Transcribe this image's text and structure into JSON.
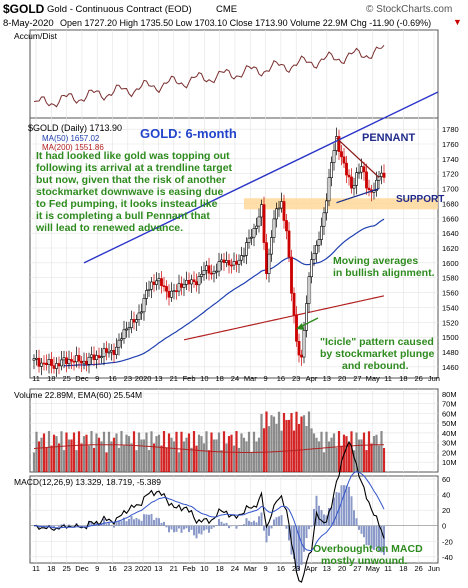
{
  "header": {
    "symbol": "$GOLD",
    "name": "Gold - Continuous Contract (EOD)",
    "exchange": "CME",
    "watermark": "© StockCharts.com",
    "date": "8-May-2020",
    "stats": "Open 1727.20  High 1735.50  Low 1703.10  Close 1713.90  Volume 22.9M  Chg -11.90 (-0.69%)",
    "chg_marker": "▼"
  },
  "panels": {
    "accum_label": "Accum/Dist",
    "price_label": "$GOLD (Daily) 1713.90",
    "ma50_label": "MA(50) 1657.02",
    "ma200_label": "MA(200) 1551.86",
    "volume_label": "Volume 22.89M, EMA(60) 25.54M",
    "macd_label": "MACD(12,26,9) 13.329, 18.719, -5.389"
  },
  "annotations": {
    "title": "GOLD: 6-month",
    "commentary": [
      "It had looked like gold was topping out",
      "following its arrival at a trendline target",
      "but now, given that the risk of another",
      "stockmarket downwave is easing due",
      "to Fed pumping, it looks instead like",
      "it is completing a bull Pennant that",
      "will lead to renewed advance."
    ],
    "pennant": "PENNANT",
    "support": "SUPPORT",
    "moving_averages": [
      "Moving averages",
      "in bullish alignment."
    ],
    "icicle": [
      "\"Icicle\" pattern caused",
      "by stockmarket plunge",
      "and rebound."
    ],
    "macd_note": [
      "Overbought on MACD",
      "mostly unwound."
    ]
  },
  "colors": {
    "up": "#000000",
    "down": "#cc0000",
    "ma50": "#1f3fb0",
    "ma200": "#b22222",
    "trendline": "#2a34c8",
    "annotation_green": "#2e8b1e",
    "title_blue": "#2244cc",
    "support_band": "#ffd89a",
    "macd_hist": "#8a99c8",
    "accum_line": "#7a2d2d"
  },
  "chart_data": {
    "type": "candlestick",
    "x_tick_labels": [
      "11",
      "18",
      "25",
      "Dec",
      "9",
      "16",
      "23",
      "2020",
      "13",
      "21",
      "Feb",
      "10",
      "18",
      "24",
      "Mar",
      "9",
      "16",
      "23",
      "Apr",
      "13",
      "20",
      "27",
      "May",
      "11",
      "18",
      "26",
      "Jun"
    ],
    "price_axis": [
      "1780",
      "1760",
      "1740",
      "1720",
      "1700",
      "1680",
      "1660",
      "1640",
      "1620",
      "1600",
      "1580",
      "1560",
      "1540",
      "1520",
      "1500",
      "1480",
      "1460"
    ],
    "price_ylim": [
      1445,
      1795
    ],
    "volume_axis": [
      "80M",
      "70M",
      "60M",
      "50M",
      "40M",
      "30M",
      "20M",
      "10M"
    ],
    "volume_ylim": [
      0,
      85
    ],
    "macd_axis": [
      "60",
      "40",
      "20",
      "0",
      "-20",
      "-40"
    ],
    "macd_ylim": [
      -48,
      64
    ],
    "anchors": [
      {
        "c": 0,
        "p": 1468
      },
      {
        "c": 8,
        "p": 1462
      },
      {
        "c": 14,
        "p": 1470
      },
      {
        "c": 20,
        "p": 1467
      },
      {
        "c": 27,
        "p": 1477
      },
      {
        "c": 33,
        "p": 1484
      },
      {
        "c": 37,
        "p": 1515
      },
      {
        "c": 41,
        "p": 1522
      },
      {
        "c": 45,
        "p": 1560
      },
      {
        "c": 49,
        "p": 1580
      },
      {
        "c": 53,
        "p": 1560
      },
      {
        "c": 57,
        "p": 1562
      },
      {
        "c": 60,
        "p": 1575
      },
      {
        "c": 64,
        "p": 1572
      },
      {
        "c": 68,
        "p": 1590
      },
      {
        "c": 72,
        "p": 1588
      },
      {
        "c": 76,
        "p": 1605
      },
      {
        "c": 80,
        "p": 1595
      },
      {
        "c": 84,
        "p": 1615
      },
      {
        "c": 88,
        "p": 1645
      },
      {
        "c": 91,
        "p": 1672
      },
      {
        "c": 93,
        "p": 1585
      },
      {
        "c": 95,
        "p": 1640
      },
      {
        "c": 97,
        "p": 1670
      },
      {
        "c": 99,
        "p": 1680
      },
      {
        "c": 101,
        "p": 1645
      },
      {
        "c": 103,
        "p": 1560
      },
      {
        "c": 105,
        "p": 1495
      },
      {
        "c": 107,
        "p": 1470
      },
      {
        "c": 109,
        "p": 1545
      },
      {
        "c": 111,
        "p": 1610
      },
      {
        "c": 113,
        "p": 1620
      },
      {
        "c": 115,
        "p": 1645
      },
      {
        "c": 117,
        "p": 1690
      },
      {
        "c": 119,
        "p": 1735
      },
      {
        "c": 121,
        "p": 1765
      },
      {
        "c": 123,
        "p": 1745
      },
      {
        "c": 125,
        "p": 1720
      },
      {
        "c": 127,
        "p": 1700
      },
      {
        "c": 129,
        "p": 1720
      },
      {
        "c": 131,
        "p": 1728
      },
      {
        "c": 133,
        "p": 1705
      },
      {
        "c": 135,
        "p": 1695
      },
      {
        "c": 137,
        "p": 1705
      },
      {
        "c": 139,
        "p": 1725
      },
      {
        "c": 140,
        "p": 1714
      }
    ]
  }
}
